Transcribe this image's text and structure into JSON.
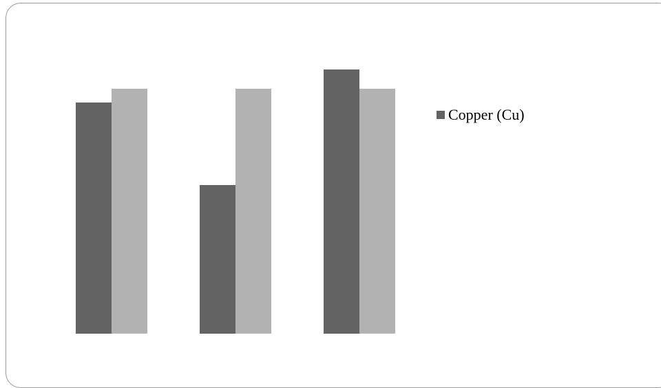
{
  "chart_data": {
    "type": "bar",
    "title": "",
    "xlabel": "",
    "ylabel": "",
    "ylim": [
      0,
      100
    ],
    "grid": false,
    "legend_position": "right",
    "categories": [
      "",
      "",
      ""
    ],
    "series": [
      {
        "name": "Copper (Cu)",
        "color": "#636363",
        "values": [
          84,
          54,
          96
        ]
      },
      {
        "color": "#b2b2b2",
        "values": [
          89,
          89,
          89
        ]
      }
    ]
  }
}
